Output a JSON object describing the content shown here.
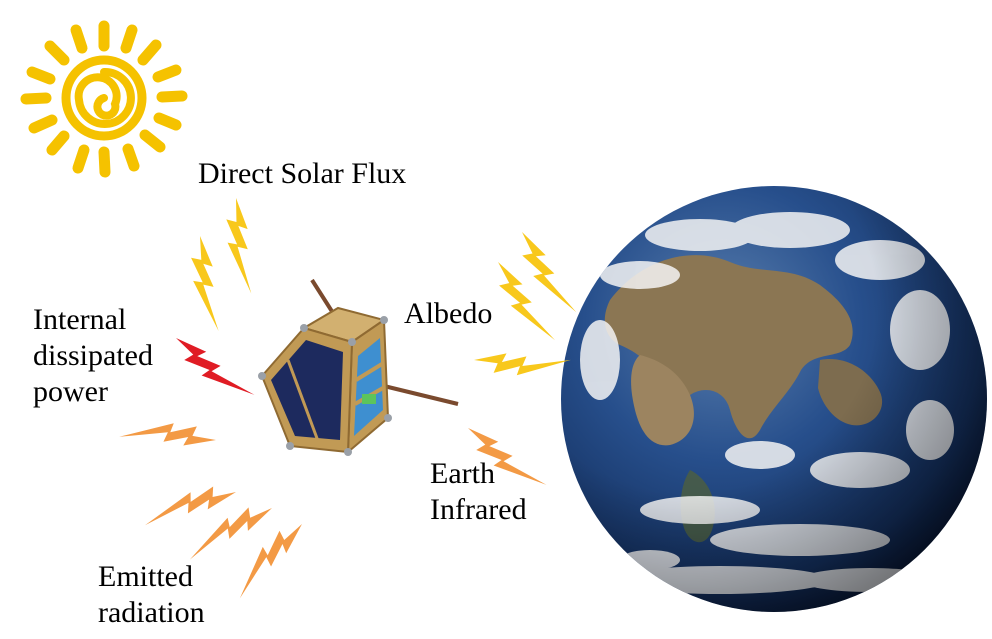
{
  "labels": {
    "direct_solar_flux": "Direct Solar Flux",
    "internal_power": [
      "Internal",
      "dissipated",
      "power"
    ],
    "albedo": "Albedo",
    "earth_infrared": [
      "Earth",
      "Infrared"
    ],
    "emitted_radiation": [
      "Emitted",
      "radiation"
    ]
  },
  "colors": {
    "sun": "#F5C200",
    "solar_bolt": "#F8C81C",
    "internal_bolt": "#E01C24",
    "infrared_bolt": "#F39A45",
    "ocean": "#1B3F79",
    "land": "#8B7653",
    "cloud": "#F4F4F4",
    "cubesat_frame": "#C19A55",
    "solar_panel": "#1D2A5E"
  },
  "icons": [
    "sun-icon",
    "lightning-bolt-icon",
    "cubesat-icon",
    "earth-icon"
  ]
}
